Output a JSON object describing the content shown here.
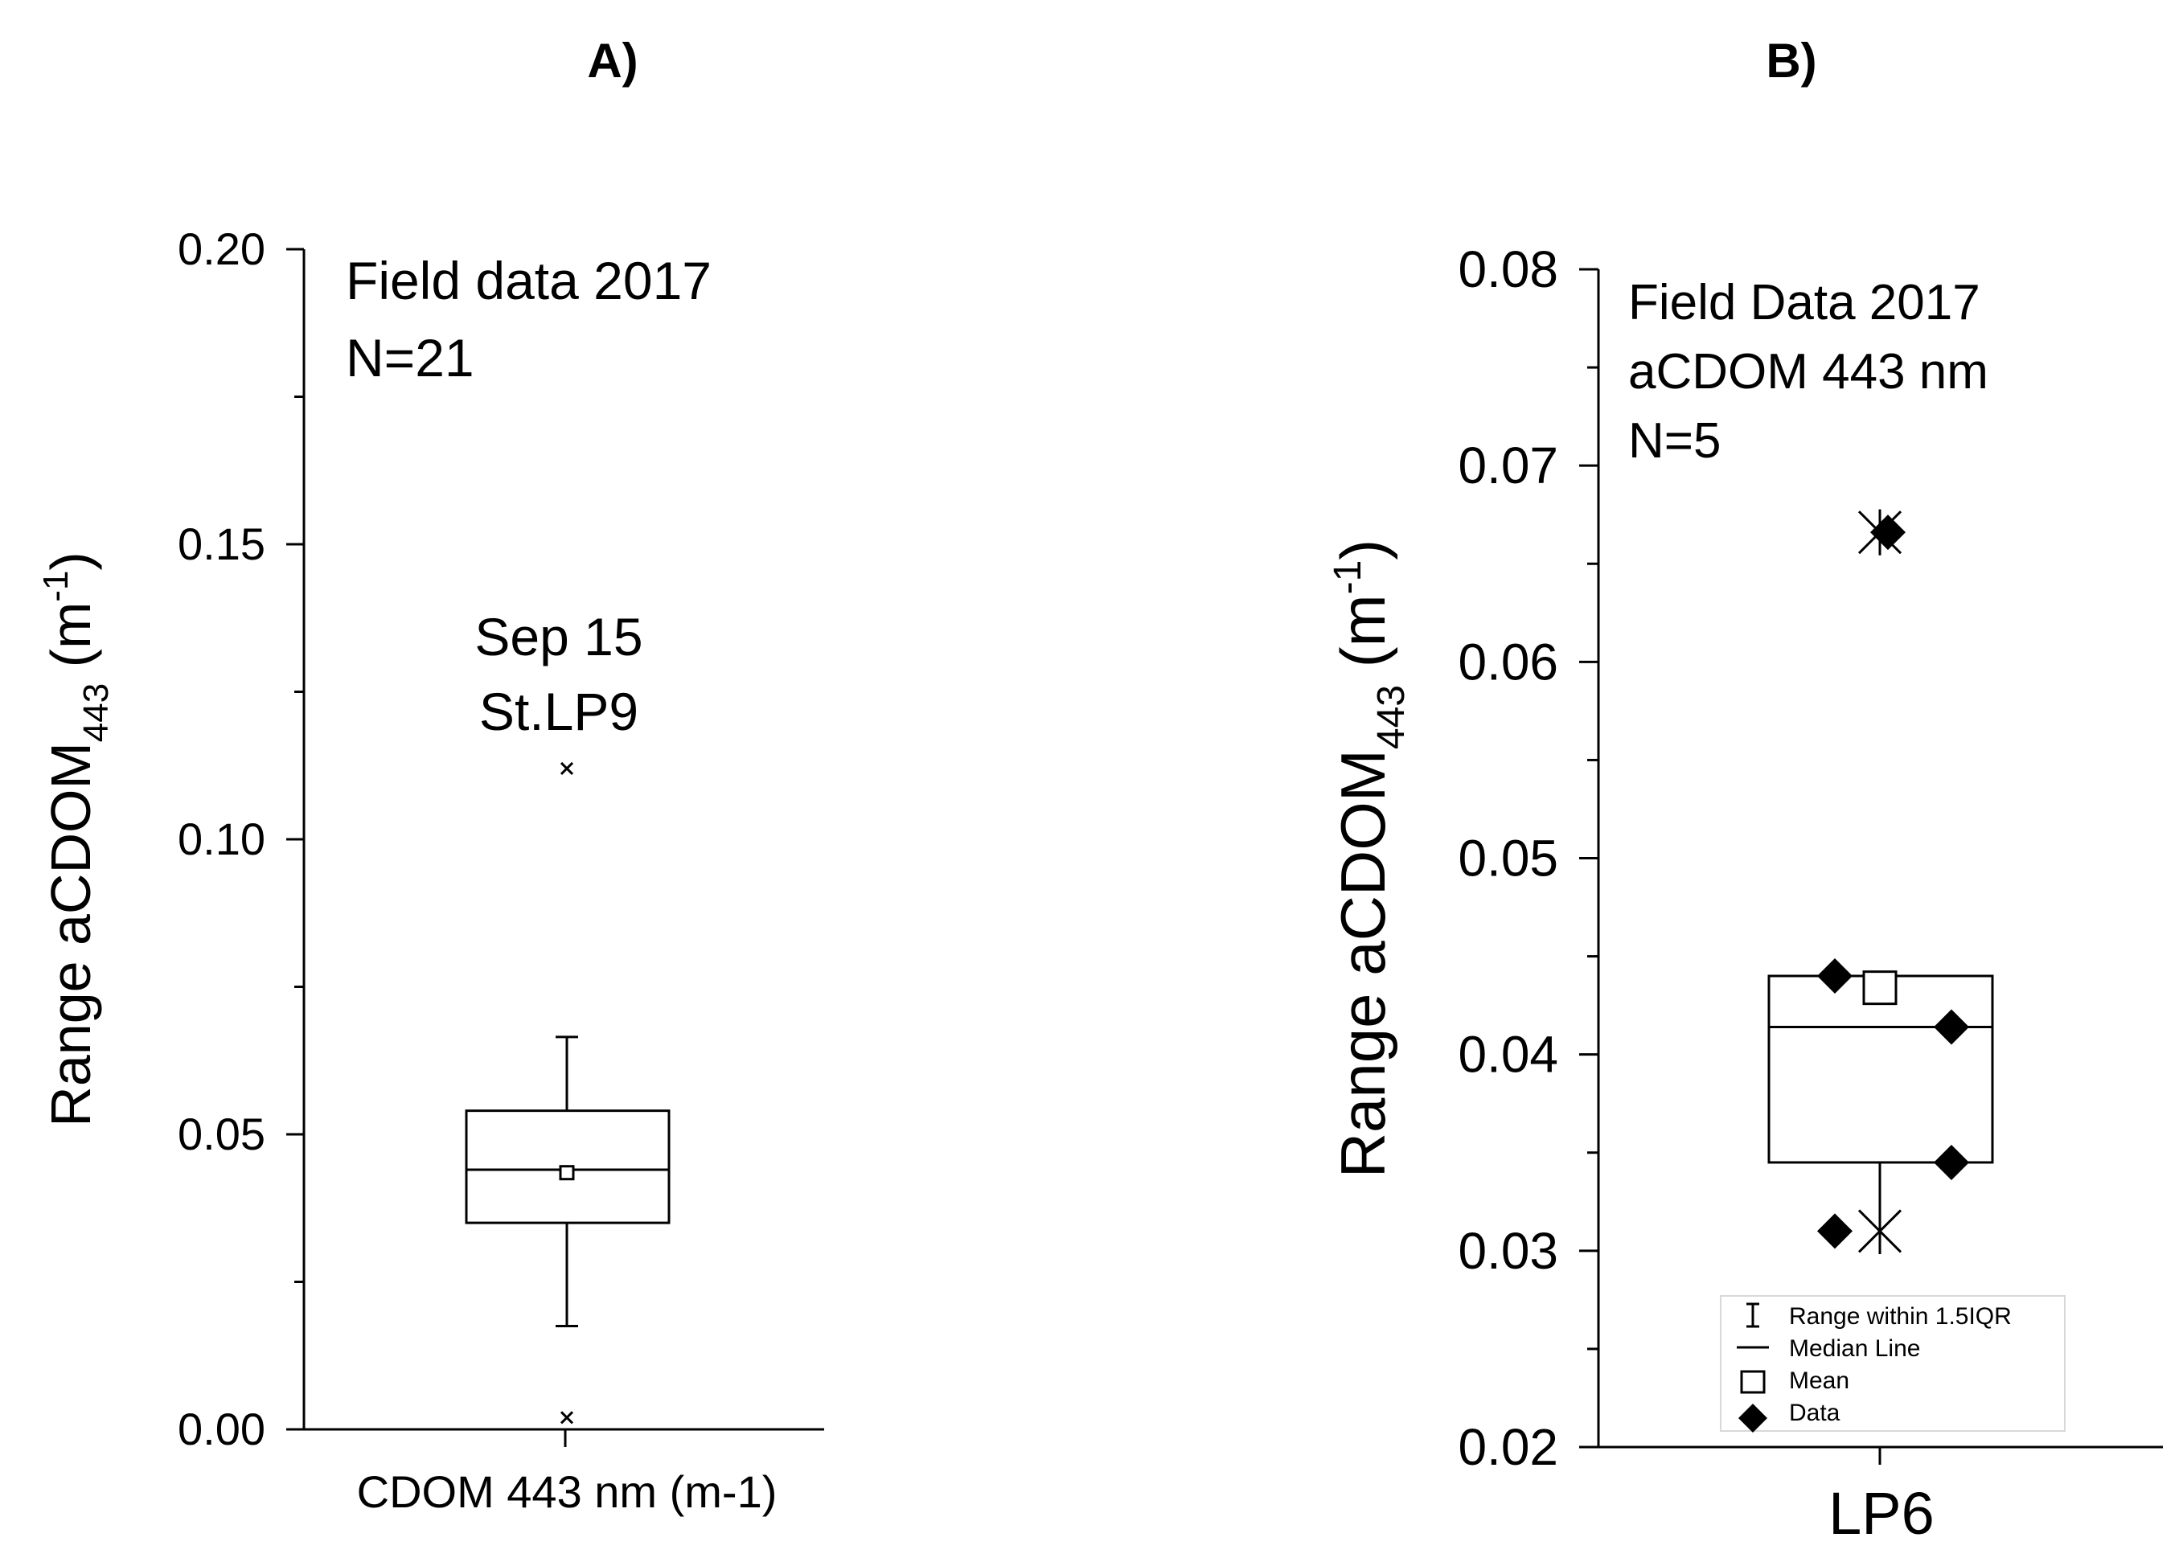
{
  "chart_data": [
    {
      "type": "box",
      "panel_label": "A)",
      "annotation": [
        "Field data 2017",
        "N=21"
      ],
      "outlier_annotation": [
        "Sep 15",
        "St.LP9"
      ],
      "ylabel": {
        "main": "Range aCDOM",
        "sub": "443",
        "unit_open": " (m",
        "unit_sup": "-1",
        "unit_close": ")"
      },
      "category": "CDOM  443 nm (m-1)",
      "ylim": [
        0.0,
        0.2
      ],
      "yticks": [
        "0.00",
        "0.05",
        "0.10",
        "0.15",
        "0.20"
      ],
      "ytick_values": [
        0.0,
        0.05,
        0.1,
        0.15,
        0.2
      ],
      "box": {
        "q1": 0.035,
        "median": 0.044,
        "q3": 0.054,
        "mean": 0.0435,
        "whisker_low": 0.0175,
        "whisker_high": 0.0665
      },
      "outliers": [
        0.112,
        0.002
      ]
    },
    {
      "type": "box",
      "panel_label": "B)",
      "annotation": [
        "Field Data 2017",
        "aCDOM 443 nm",
        "N=5"
      ],
      "ylabel": {
        "main": "Range aCDOM",
        "sub": "443",
        "unit_open": " (m",
        "unit_sup": "-1",
        "unit_close": ")"
      },
      "category": "LP6",
      "ylim": [
        0.02,
        0.08
      ],
      "yticks": [
        "0.02",
        "0.03",
        "0.04",
        "0.05",
        "0.06",
        "0.07",
        "0.08"
      ],
      "ytick_values": [
        0.02,
        0.03,
        0.04,
        0.05,
        0.06,
        0.07,
        0.08
      ],
      "box": {
        "q1": 0.0345,
        "median": 0.0414,
        "q3": 0.044,
        "mean": 0.0434,
        "min": 0.031,
        "max": 0.0666
      },
      "data_points": [
        0.044,
        0.0414,
        0.0345,
        0.031,
        0.0666
      ],
      "legend": [
        "Range within 1.5IQR",
        "Median Line",
        "Mean",
        "Data"
      ]
    }
  ]
}
